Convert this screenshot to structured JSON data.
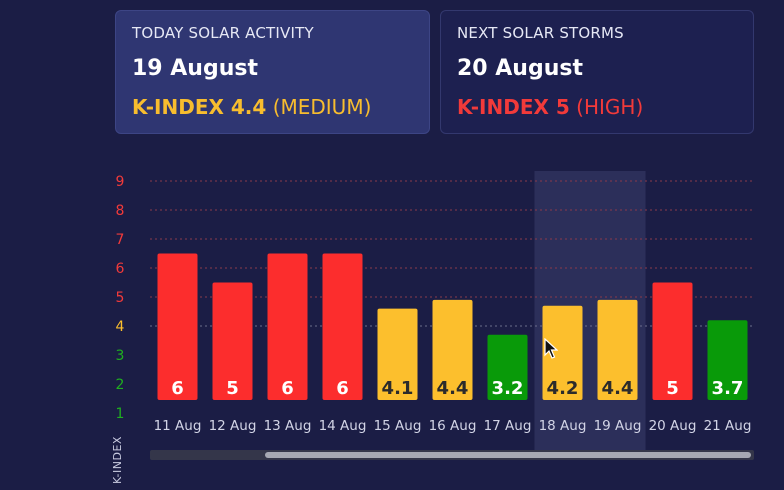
{
  "cards": {
    "today": {
      "title": "TODAY SOLAR ACTIVITY",
      "date": "19 August",
      "k_label": "K-INDEX 4.4",
      "level": "(MEDIUM)",
      "color": "#f8bd2e"
    },
    "next": {
      "title": "NEXT SOLAR STORMS",
      "date": "20 August",
      "k_label": "K-INDEX 5",
      "level": "(HIGH)",
      "color": "#f23a3a"
    }
  },
  "chart_data": {
    "type": "bar",
    "categories": [
      "11 Aug",
      "12 Aug",
      "13 Aug",
      "14 Aug",
      "15 Aug",
      "16 Aug",
      "17 Aug",
      "18 Aug",
      "19 Aug",
      "20 Aug",
      "21 Aug"
    ],
    "values": [
      6,
      5,
      6,
      6,
      4.1,
      4.4,
      3.2,
      4.2,
      4.4,
      5,
      3.7
    ],
    "value_labels": [
      "6",
      "5",
      "6",
      "6",
      "4.1",
      "4.4",
      "3.2",
      "4.2",
      "4.4",
      "5",
      "3.7"
    ],
    "ylabel": "K-INDEX",
    "yticks": [
      1,
      2,
      3,
      4,
      5,
      6,
      7,
      8,
      9
    ],
    "ylim": [
      1,
      9
    ],
    "grid": true,
    "highlighted_categories": [
      "18 Aug",
      "19 Aug"
    ],
    "colors": {
      "high": "#fc2d2d",
      "medium": "#fcbf2d",
      "low": "#099a09",
      "tick_low": "#1fb01f",
      "tick_medium": "#fcbf2d",
      "tick_high": "#f23a3a",
      "grid": "#8a3a4a",
      "highlight": "#2c2f5a"
    }
  },
  "scrollbar": {
    "position": "horizontal"
  },
  "cursor": {
    "icon": "pointer-arrow-icon"
  }
}
